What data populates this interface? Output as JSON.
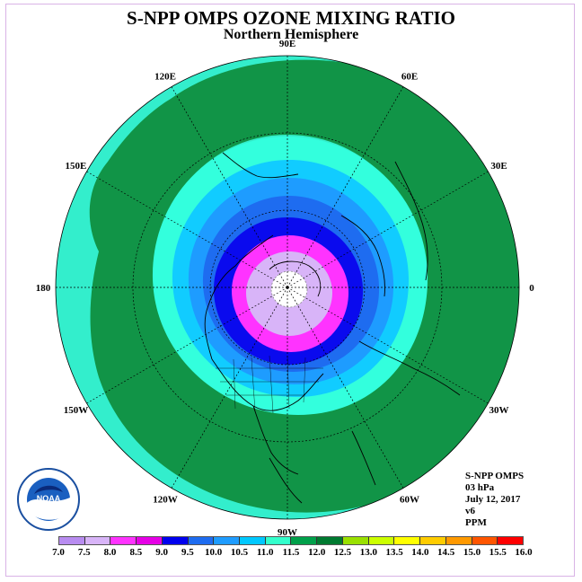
{
  "title": "S-NPP OMPS OZONE MIXING RATIO",
  "subtitle": "Northern Hemisphere",
  "longitude_labels": [
    {
      "text": "90E",
      "lon": 90
    },
    {
      "text": "60E",
      "lon": 60
    },
    {
      "text": "30E",
      "lon": 30
    },
    {
      "text": "0",
      "lon": 0
    },
    {
      "text": "30W",
      "lon": -30
    },
    {
      "text": "60W",
      "lon": -60
    },
    {
      "text": "90W",
      "lon": -90
    },
    {
      "text": "120W",
      "lon": -120
    },
    {
      "text": "150W",
      "lon": -150
    },
    {
      "text": "180",
      "lon": 180
    },
    {
      "text": "150E",
      "lon": 150
    },
    {
      "text": "120E",
      "lon": 120
    }
  ],
  "info": {
    "instrument": "S-NPP OMPS",
    "level": "03 hPa",
    "date": "July 12, 2017",
    "version": "v6",
    "units": "PPM"
  },
  "colorbar": {
    "ticks": [
      "7.0",
      "7.5",
      "8.0",
      "8.5",
      "9.0",
      "9.5",
      "10.0",
      "10.5",
      "11.0",
      "11.5",
      "12.0",
      "12.5",
      "13.0",
      "13.5",
      "14.0",
      "14.5",
      "15.0",
      "15.5",
      "16.0"
    ],
    "colors": [
      "#b88cf0",
      "#d8b4f8",
      "#ff33ff",
      "#e600e6",
      "#0000ee",
      "#1e6cf0",
      "#1e9cff",
      "#00c8ff",
      "#33ffcc",
      "#00a04a",
      "#007a30",
      "#99e000",
      "#ccff00",
      "#ffff00",
      "#ffcc00",
      "#ff9900",
      "#ff5500",
      "#ff0000",
      "#8b5a2b"
    ]
  },
  "map_levels": {
    "outer_background": "#33eecc",
    "band_11_5": "#119447",
    "band_10_5": "#33ffdd",
    "band_10_0": "#11ccff",
    "band_9_5": "#1e9cff",
    "band_9_0": "#1e6cf0",
    "band_8_5": "#0a0aee",
    "band_8_0": "#ff33ff",
    "band_7_5": "#d8b4f8",
    "pole_missing": "#ffffff"
  },
  "logo_text": "NOAA"
}
